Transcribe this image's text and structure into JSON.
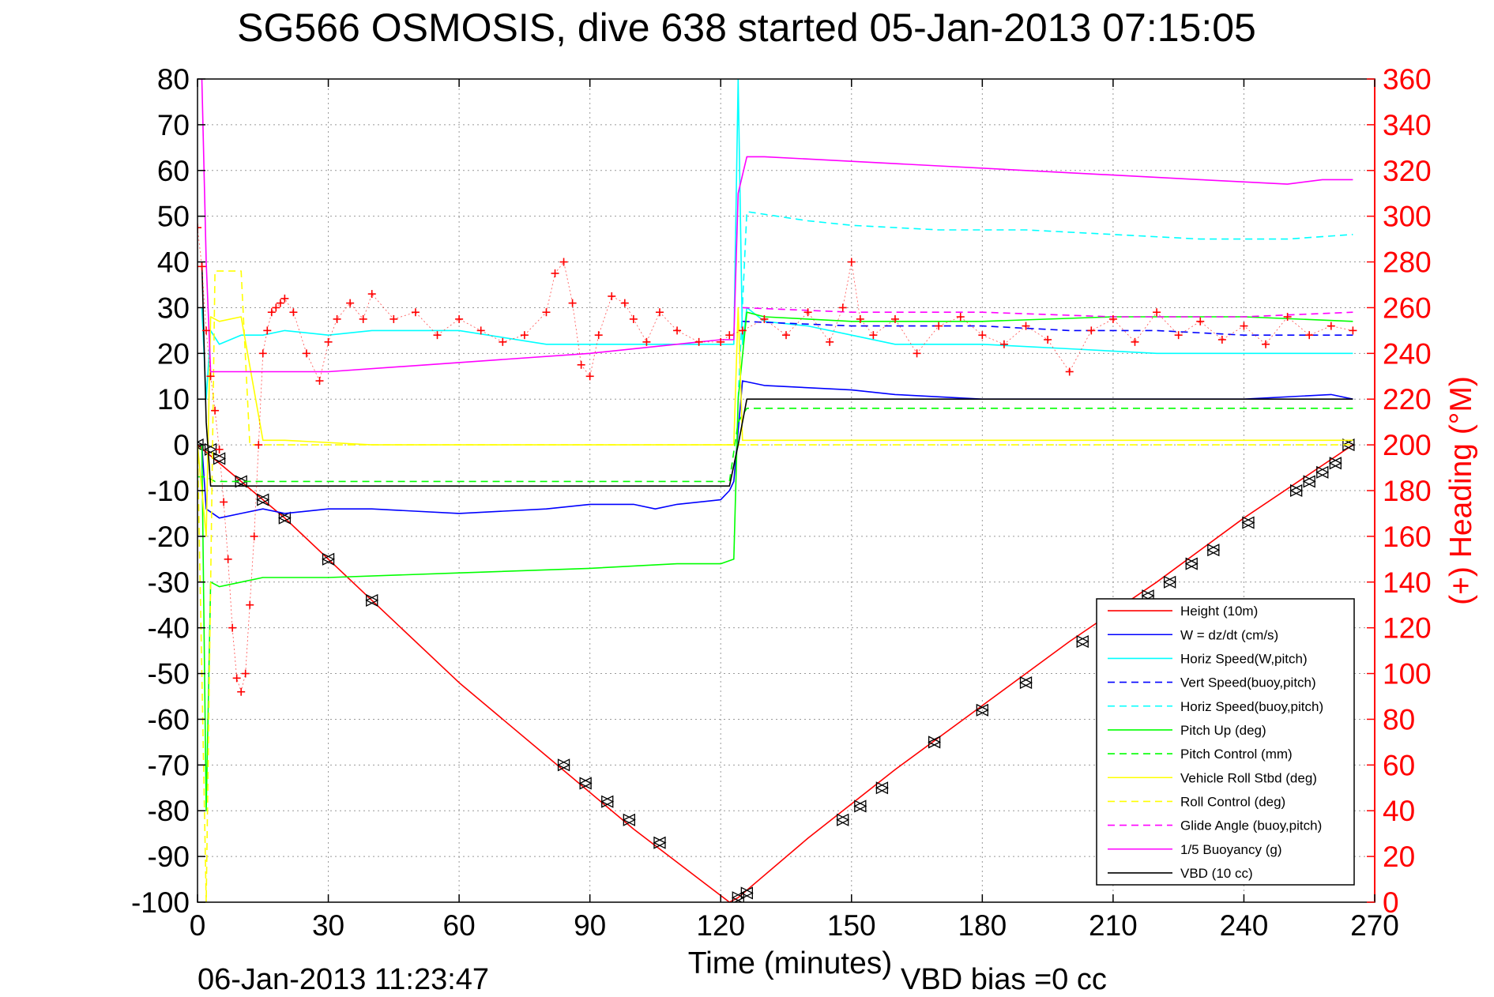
{
  "chart_data": {
    "type": "line",
    "title": "SG566 OSMOSIS, dive 638 started 05-Jan-2013 07:15:05",
    "xlabel": "Time (minutes)",
    "ylabel_right": "(+) Heading (°M)",
    "footer_left": "06-Jan-2013 11:23:47",
    "footer_right": "VBD bias =0 cc",
    "xlim": [
      0,
      270
    ],
    "ylim_left": [
      -100,
      80
    ],
    "ylim_right": [
      0,
      360
    ],
    "xticks": [
      0,
      30,
      60,
      90,
      120,
      150,
      180,
      210,
      240,
      270
    ],
    "yticks_left": [
      80,
      70,
      60,
      50,
      40,
      30,
      20,
      10,
      0,
      -10,
      -20,
      -30,
      -40,
      -50,
      -60,
      -70,
      -80,
      -90,
      -100
    ],
    "yticks_right": [
      360,
      340,
      320,
      300,
      280,
      260,
      240,
      220,
      200,
      180,
      160,
      140,
      120,
      100,
      80,
      60,
      40,
      20,
      0
    ],
    "grid": true,
    "legend_position": "bottom-right",
    "colors": {
      "red": "#ff0000",
      "blue": "#0000ff",
      "cyan": "#00ffff",
      "green": "#00ff00",
      "yellow": "#ffff00",
      "magenta": "#ff00ff",
      "black": "#000000"
    },
    "legend": [
      {
        "label": "Height (10m)",
        "color": "#ff0000",
        "style": "solid"
      },
      {
        "label": "W = dz/dt (cm/s)",
        "color": "#0000ff",
        "style": "solid"
      },
      {
        "label": "Horiz Speed(W,pitch)",
        "color": "#00ffff",
        "style": "solid"
      },
      {
        "label": "Vert Speed(buoy,pitch)",
        "color": "#0000ff",
        "style": "dashed"
      },
      {
        "label": "Horiz Speed(buoy,pitch)",
        "color": "#00ffff",
        "style": "dashed"
      },
      {
        "label": "Pitch Up (deg)",
        "color": "#00ff00",
        "style": "solid"
      },
      {
        "label": "Pitch Control (mm)",
        "color": "#00ff00",
        "style": "dashed"
      },
      {
        "label": "Vehicle Roll Stbd (deg)",
        "color": "#ffff00",
        "style": "solid"
      },
      {
        "label": "Roll Control (deg)",
        "color": "#ffff00",
        "style": "dashed"
      },
      {
        "label": "Glide Angle (buoy,pitch)",
        "color": "#ff00ff",
        "style": "dashed"
      },
      {
        "label": "1/5 Buoyancy (g)",
        "color": "#ff00ff",
        "style": "solid"
      },
      {
        "label": "VBD (10 cc)",
        "color": "#000000",
        "style": "solid"
      }
    ],
    "series": [
      {
        "name": "Height (10m)",
        "color": "#ff0000",
        "style": "solid",
        "x": [
          0,
          20,
          40,
          60,
          80,
          100,
          122,
          124,
          140,
          160,
          180,
          200,
          220,
          240,
          265
        ],
        "y": [
          0,
          -16,
          -34,
          -52,
          -68,
          -84,
          -100,
          -99,
          -86,
          -71,
          -57,
          -43,
          -30,
          -16,
          0
        ]
      },
      {
        "name": "Height markers",
        "color": "#000000",
        "style": "marker",
        "x": [
          0,
          3,
          5,
          10,
          15,
          20,
          30,
          40,
          84,
          89,
          94,
          99,
          106,
          124,
          126,
          148,
          152,
          157,
          169,
          180,
          190,
          203,
          218,
          223,
          228,
          233,
          241,
          252,
          255,
          258,
          261,
          264
        ],
        "y": [
          0,
          -1,
          -3,
          -8,
          -12,
          -16,
          -25,
          -34,
          -70,
          -74,
          -78,
          -82,
          -87,
          -99,
          -98,
          -82,
          -79,
          -75,
          -65,
          -58,
          -52,
          -43,
          -33,
          -30,
          -26,
          -23,
          -17,
          -10,
          -8,
          -6,
          -4,
          0
        ]
      },
      {
        "name": "W = dz/dt (cm/s)",
        "color": "#0000ff",
        "style": "solid",
        "x": [
          1,
          2,
          5,
          10,
          15,
          20,
          30,
          40,
          60,
          80,
          90,
          100,
          105,
          110,
          120,
          122,
          123,
          125,
          130,
          150,
          160,
          180,
          200,
          220,
          240,
          260,
          265
        ],
        "y": [
          0,
          -14,
          -16,
          -15,
          -14,
          -15,
          -14,
          -14,
          -15,
          -14,
          -13,
          -13,
          -14,
          -13,
          -12,
          -10,
          -8,
          14,
          13,
          12,
          11,
          10,
          10,
          10,
          10,
          11,
          10
        ]
      },
      {
        "name": "Horiz Speed(W,pitch)",
        "color": "#00ffff",
        "style": "solid",
        "x": [
          1,
          2,
          3,
          5,
          10,
          15,
          20,
          30,
          40,
          60,
          80,
          100,
          120,
          123,
          124,
          125,
          126,
          130,
          140,
          150,
          160,
          180,
          200,
          220,
          240,
          265
        ],
        "y": [
          30,
          10,
          25,
          22,
          24,
          24,
          25,
          24,
          25,
          25,
          22,
          22,
          22,
          22,
          80,
          22,
          30,
          27,
          26,
          24,
          22,
          22,
          21,
          20,
          20,
          20
        ]
      },
      {
        "name": "Vert Speed(buoy,pitch)",
        "color": "#0000ff",
        "style": "dashed",
        "x": [
          125,
          150,
          180,
          200,
          220,
          240,
          265
        ],
        "y": [
          27,
          26,
          26,
          25,
          25,
          24,
          24
        ]
      },
      {
        "name": "Horiz Speed(buoy,pitch)",
        "color": "#00ffff",
        "style": "dashed",
        "x": [
          124,
          126,
          140,
          150,
          170,
          190,
          210,
          230,
          250,
          265
        ],
        "y": [
          10,
          51,
          49,
          48,
          47,
          47,
          46,
          45,
          45,
          46
        ]
      },
      {
        "name": "Pitch Up (deg)",
        "color": "#00ff00",
        "style": "solid",
        "x": [
          1,
          2,
          3,
          5,
          10,
          15,
          20,
          30,
          60,
          90,
          110,
          120,
          123,
          124,
          126,
          130,
          150,
          180,
          210,
          240,
          265
        ],
        "y": [
          0,
          -80,
          -30,
          -31,
          -30,
          -29,
          -29,
          -29,
          -28,
          -27,
          -26,
          -26,
          -25,
          10,
          29,
          28,
          27,
          27,
          28,
          28,
          27
        ]
      },
      {
        "name": "Pitch Control (mm)",
        "color": "#00ff00",
        "style": "dashed",
        "x": [
          0,
          2,
          4,
          122,
          124,
          126,
          265
        ],
        "y": [
          -7,
          -7,
          -8,
          -8,
          5,
          8,
          8
        ]
      },
      {
        "name": "Vehicle Roll Stbd (deg)",
        "color": "#ffff00",
        "style": "solid",
        "x": [
          0,
          2,
          3,
          5,
          10,
          15,
          20,
          40,
          60,
          80,
          100,
          120,
          123,
          124,
          125,
          150,
          180,
          210,
          240,
          260,
          265
        ],
        "y": [
          0,
          -20,
          28,
          27,
          28,
          1,
          1,
          0,
          0,
          0,
          0,
          0,
          0,
          30,
          1,
          1,
          1,
          1,
          1,
          1,
          1
        ]
      },
      {
        "name": "Roll Control (deg)",
        "color": "#ffff00",
        "style": "dashed",
        "x": [
          0,
          2,
          4,
          5,
          10,
          12,
          265
        ],
        "y": [
          0,
          -100,
          38,
          38,
          38,
          0,
          0
        ]
      },
      {
        "name": "Glide Angle (buoy,pitch)",
        "color": "#ff00ff",
        "style": "dashed",
        "x": [
          125,
          150,
          180,
          210,
          240,
          265
        ],
        "y": [
          30,
          29,
          29,
          28,
          28,
          29
        ]
      },
      {
        "name": "1/5 Buoyancy (g)",
        "color": "#ff00ff",
        "style": "solid",
        "x": [
          1,
          2,
          3,
          30,
          60,
          90,
          120,
          123,
          124,
          126,
          130,
          150,
          170,
          190,
          210,
          230,
          250,
          258,
          265
        ],
        "y": [
          80,
          40,
          16,
          16,
          18,
          20,
          23,
          23,
          55,
          63,
          63,
          62,
          61,
          60,
          59,
          58,
          57,
          58,
          58
        ]
      },
      {
        "name": "VBD (10 cc)",
        "color": "#000000",
        "style": "solid",
        "x": [
          1,
          2,
          3,
          5,
          20,
          60,
          120,
          122,
          124,
          126,
          265
        ],
        "y": [
          40,
          5,
          -9,
          -9,
          -9,
          -9,
          -9,
          -9,
          0,
          10,
          10
        ]
      },
      {
        "name": "(+) Heading (°M)",
        "color": "#ff0000",
        "style": "plus",
        "axis": "right",
        "x": [
          0,
          1,
          2,
          3,
          4,
          5,
          6,
          7,
          8,
          9,
          10,
          11,
          12,
          13,
          14,
          15,
          16,
          17,
          18,
          19,
          20,
          22,
          25,
          28,
          30,
          32,
          35,
          38,
          40,
          45,
          50,
          55,
          60,
          65,
          70,
          75,
          80,
          82,
          84,
          86,
          88,
          90,
          92,
          95,
          98,
          100,
          103,
          106,
          110,
          115,
          120,
          122,
          125,
          130,
          135,
          140,
          145,
          148,
          150,
          152,
          155,
          160,
          165,
          170,
          175,
          180,
          185,
          190,
          195,
          200,
          205,
          210,
          215,
          220,
          225,
          230,
          235,
          240,
          245,
          250,
          255,
          260,
          265
        ],
        "y": [
          295,
          278,
          250,
          230,
          215,
          198,
          175,
          150,
          120,
          98,
          92,
          100,
          130,
          160,
          200,
          240,
          250,
          258,
          260,
          262,
          264,
          258,
          240,
          228,
          245,
          255,
          262,
          255,
          266,
          255,
          258,
          248,
          255,
          250,
          245,
          248,
          258,
          275,
          280,
          262,
          235,
          230,
          248,
          265,
          262,
          255,
          245,
          258,
          250,
          245,
          245,
          248,
          250,
          255,
          248,
          258,
          245,
          260,
          280,
          255,
          248,
          255,
          240,
          252,
          256,
          248,
          244,
          252,
          246,
          232,
          250,
          255,
          245,
          258,
          248,
          254,
          246,
          252,
          244,
          256,
          248,
          252,
          250
        ]
      }
    ]
  }
}
